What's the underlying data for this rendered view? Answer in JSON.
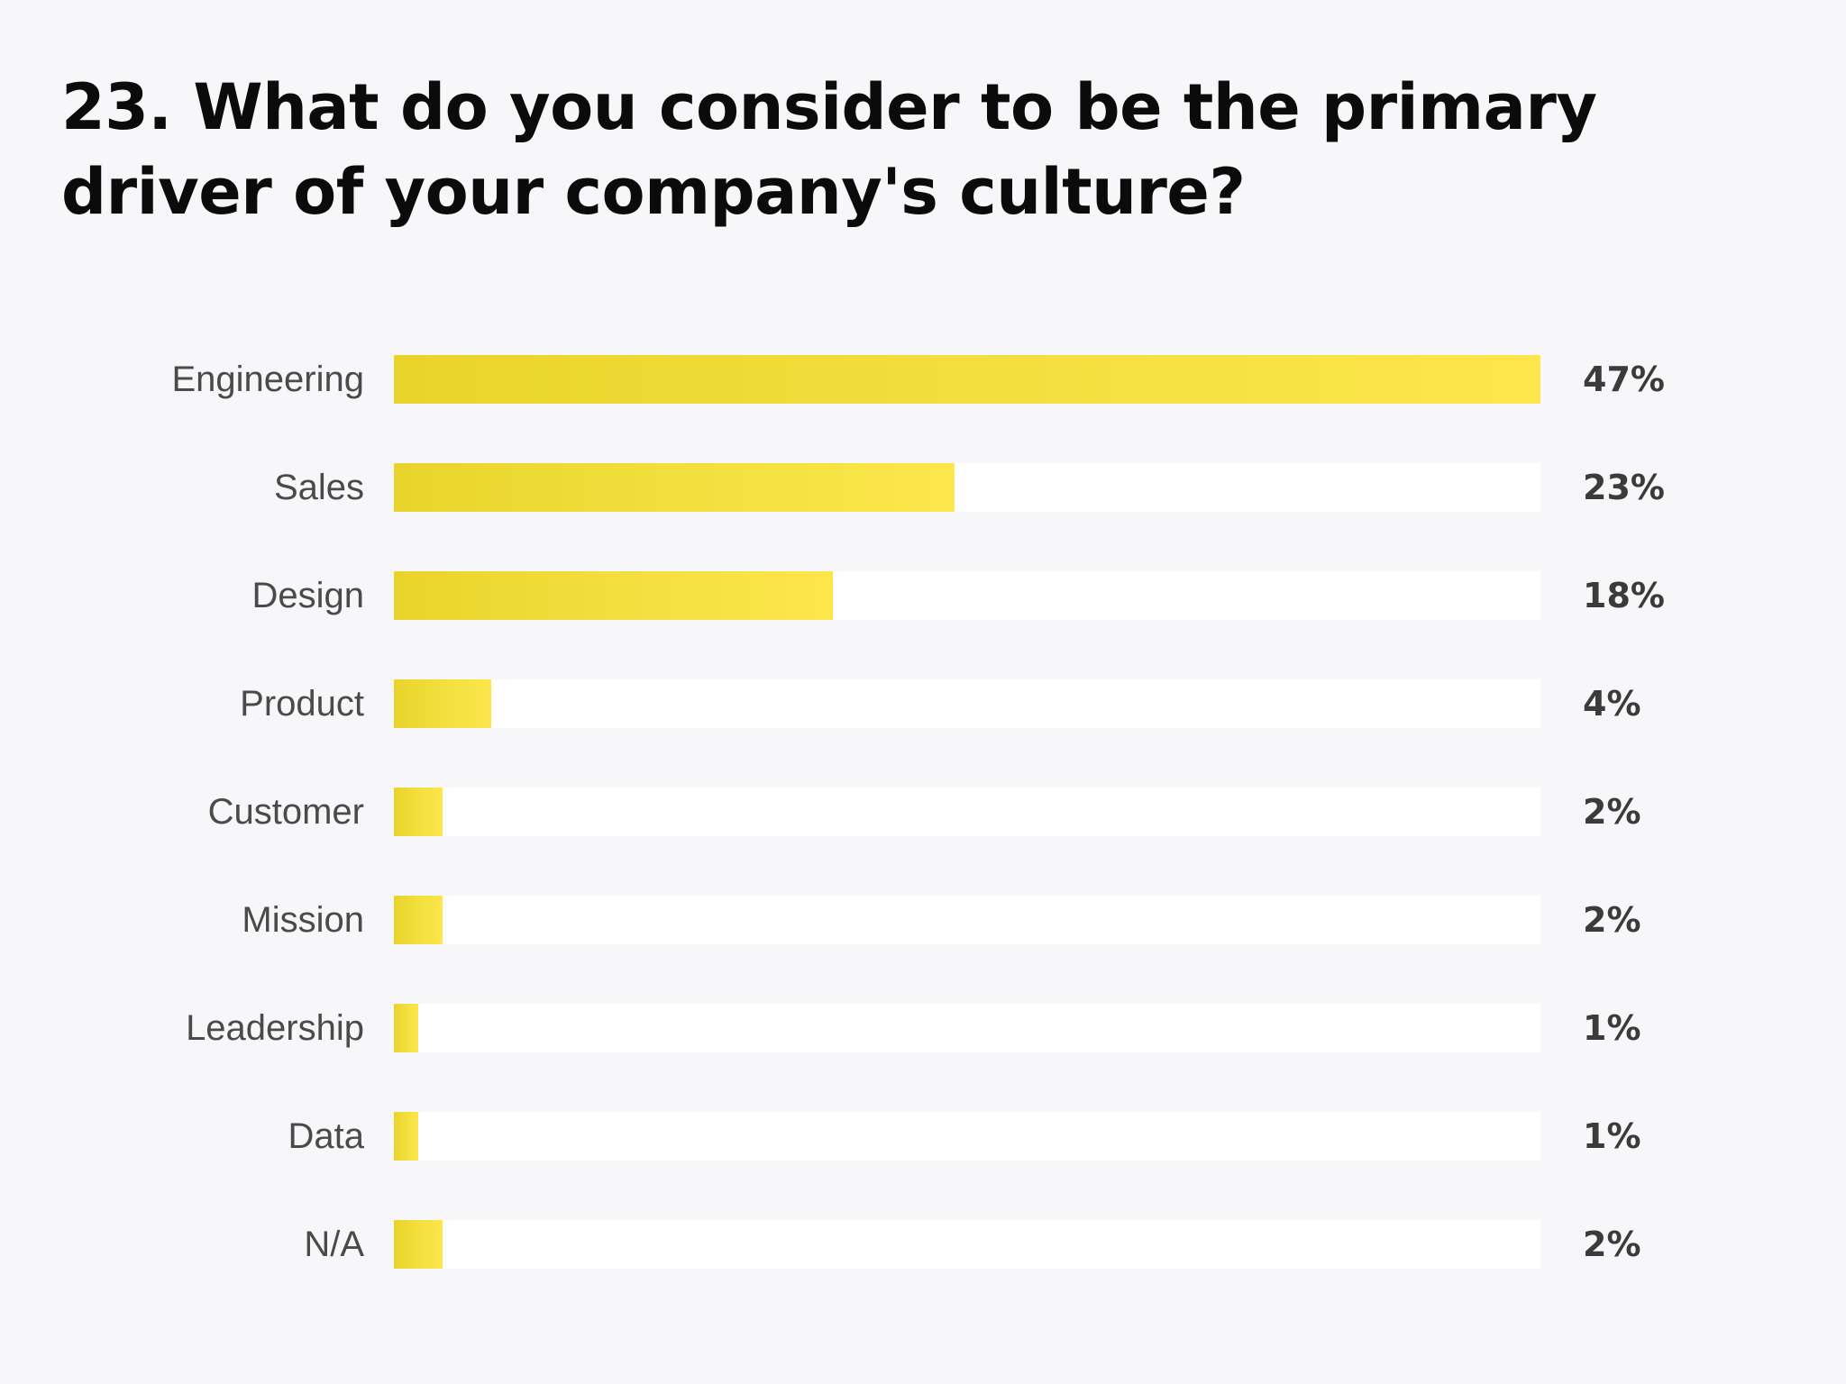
{
  "chart_data": {
    "type": "bar",
    "orientation": "horizontal",
    "title": "23. What do you consider to be the primary driver of your company's culture?",
    "categories": [
      "Engineering",
      "Sales",
      "Design",
      "Product",
      "Customer",
      "Mission",
      "Leadership",
      "Data",
      "N/A"
    ],
    "values": [
      47,
      23,
      18,
      4,
      2,
      2,
      1,
      1,
      2
    ],
    "value_labels": [
      "47%",
      "23%",
      "18%",
      "4%",
      "2%",
      "2%",
      "1%",
      "1%",
      "2%"
    ],
    "unit": "%",
    "xlim": [
      0,
      47
    ],
    "grid": false,
    "legend": "none",
    "colors": {
      "bar": "#f3e03f",
      "bar_start": "#e8d42a",
      "bar_end": "#fde64b",
      "track": "#ffffff",
      "background": "#f7f6f9"
    }
  }
}
